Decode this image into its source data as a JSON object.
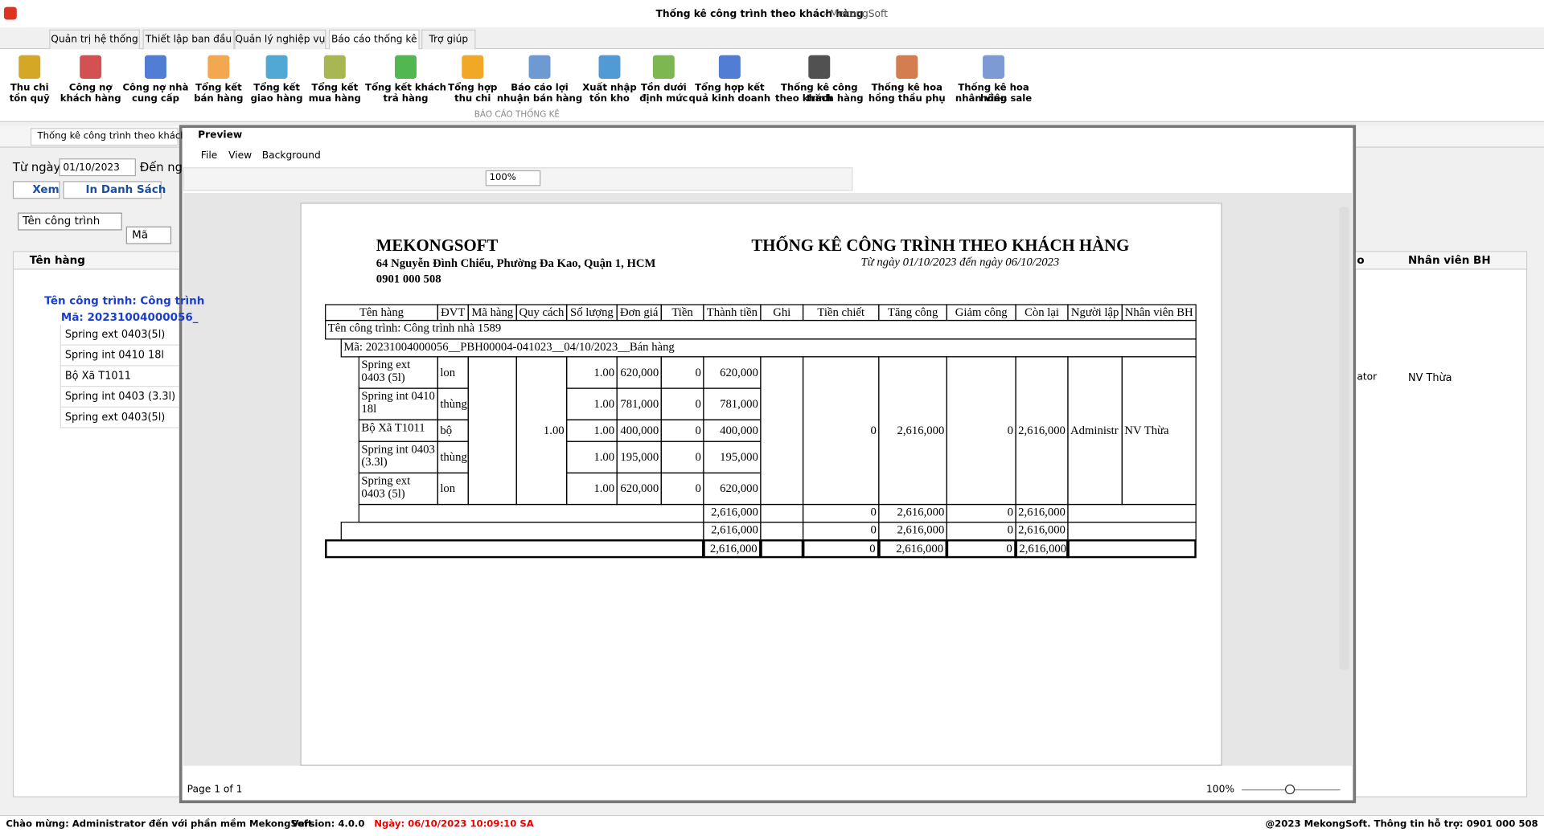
{
  "title_bar": {
    "title": "Thống kê công trình theo khách hàng",
    "app": " - MekongSoft"
  },
  "tabs": [
    "Quản trị hệ thống",
    "Thiết lập ban đầu",
    "Quản lý nghiệp vụ",
    "Báo cáo thống kê",
    "Trợ giúp"
  ],
  "ribbon": {
    "buttons": [
      [
        "Thu chi",
        "tồn quỹ"
      ],
      [
        "Công nợ",
        "khách hàng"
      ],
      [
        "Công nợ nhà",
        "cung cấp"
      ],
      [
        "Tổng kết",
        "bán hàng"
      ],
      [
        "Tổng kết",
        "giao hàng"
      ],
      [
        "Tổng kết",
        "mua hàng"
      ],
      [
        "Tổng kết khách",
        "trả hàng"
      ],
      [
        "Tổng hợp",
        "thu chi"
      ],
      [
        "Báo cáo lợi",
        "nhuận bán hàng"
      ],
      [
        "Xuất nhập",
        "tồn kho"
      ],
      [
        "Tồn dưới",
        "định mức"
      ],
      [
        "Tổng hợp kết",
        "quả kinh doanh"
      ],
      [
        "Thống kê công trình",
        "theo khách hàng"
      ],
      [
        "Thống kê hoa",
        "hồng thầu phụ"
      ],
      [
        "Thống kê hoa hồng",
        "nhân viên sale"
      ]
    ],
    "group": "BÁO CÁO THỐNG KÊ"
  },
  "doc_tab": "Thống kê công trình theo khách hàng",
  "filter": {
    "from_label": "Từ ngày",
    "from_value": "01/10/2023",
    "to_label": "Đến ng",
    "view_button": "Xem",
    "print_button": "In Danh Sách"
  },
  "grid": {
    "group_chips": [
      "Tên công trình",
      "Mã"
    ],
    "header": "Tên hàng",
    "group_row": "Tên công trình: Công trình",
    "sub_row": "Mã: 20231004000056_",
    "items": [
      "Spring ext 0403(5l)",
      "Spring int 0410 18l",
      "Bộ Xã T1011",
      "Spring int 0403 (3.3l)",
      "Spring ext 0403(5l)"
    ],
    "right_header_partial": "o",
    "right_header": "Nhân viên BH",
    "right_creator_partial": "ator",
    "right_staff": "NV Thừa"
  },
  "preview": {
    "title": "Preview",
    "menus": [
      "File",
      "View",
      "Background"
    ],
    "zoom": "100%",
    "page_status": "Page 1 of 1",
    "zoom_status": "100%"
  },
  "report": {
    "company": "MEKONGSOFT",
    "address": "64 Nguyễn Đình Chiểu, Phường Đa Kao, Quận 1, HCM",
    "phone": "0901 000 508",
    "title": "THỐNG KÊ CÔNG TRÌNH THEO KHÁCH HÀNG",
    "date_range": "Từ ngày 01/10/2023 đến ngày 06/10/2023",
    "columns": [
      "Tên hàng",
      "ĐVT",
      "Mã hàng",
      "Quy cách",
      "Số lượng",
      "Đơn giá",
      "Tiền CK",
      "Thành tiền",
      "Ghi chú",
      "Tiền chiết khấu",
      "Tăng công nợ",
      "Giảm công nợ",
      "Còn lại",
      "Người lập",
      "Nhân viên BH"
    ],
    "group_row": "Tên công trình: Công trình nhà 1589",
    "sub_row": "Mã: 20231004000056__PBH00004-041023__04/10/2023__Bán hàng",
    "items": [
      {
        "name": "Spring ext 0403 (5l)",
        "unit": "lon",
        "qty": "1.00",
        "price": "620,000",
        "discount": "0",
        "amount": "620,000"
      },
      {
        "name": "Spring int 0410 18l",
        "unit": "thùng",
        "qty": "1.00",
        "price": "781,000",
        "discount": "0",
        "amount": "781,000"
      },
      {
        "name": "Bộ Xã T1011",
        "unit": "bộ",
        "qty": "1.00",
        "price": "400,000",
        "discount": "0",
        "amount": "400,000"
      },
      {
        "name": "Spring int 0403 (3.3l)",
        "unit": "thùng",
        "qty": "1.00",
        "price": "195,000",
        "discount": "0",
        "amount": "195,000"
      },
      {
        "name": "Spring ext 0403 (5l)",
        "unit": "lon",
        "qty": "1.00",
        "price": "620,000",
        "discount": "0",
        "amount": "620,000"
      }
    ],
    "merged": {
      "spec": "1.00",
      "discount_total": "0",
      "increase": "2,616,000",
      "decrease": "0",
      "remaining": "2,616,000",
      "creator": "Administr",
      "staff": "NV Thừa"
    },
    "totals": [
      {
        "amount": "2,616,000",
        "discount": "0",
        "increase": "2,616,000",
        "decrease": "0",
        "remaining": "2,616,000"
      },
      {
        "amount": "2,616,000",
        "discount": "0",
        "increase": "2,616,000",
        "decrease": "0",
        "remaining": "2,616,000"
      },
      {
        "amount": "2,616,000",
        "discount": "0",
        "increase": "2,616,000",
        "decrease": "0",
        "remaining": "2,616,000"
      }
    ]
  },
  "status_bar": {
    "welcome": "Chào mừng: Administrator đến với phần mềm MekongSoft",
    "version": "Version: 4.0.0",
    "date": "Ngày: 06/10/2023 10:09:10 SA",
    "support": "@2023 MekongSoft. Thông tin hỗ trợ: 0901 000 508"
  }
}
